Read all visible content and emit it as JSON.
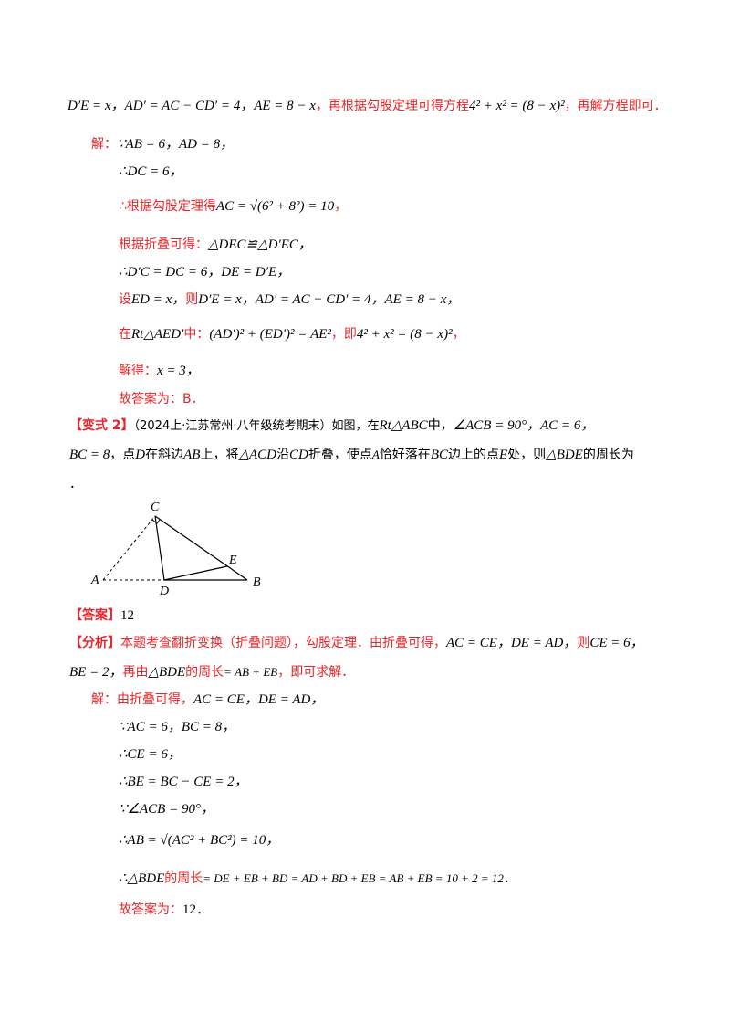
{
  "lines": {
    "l1_math": "D′E = x，AD′ = AC − CD′ = 4，AE = 8 − x",
    "l1_red": "，再根据勾股定理可得方程",
    "l1_eq": "4² + x² = (8 − x)²",
    "l1_end": "，再解方程即可．",
    "s_label": "解：",
    "s1": "∵AB = 6，AD = 8，",
    "s2": "∴DC = 6，",
    "s3_red": "∴根据勾股定理得",
    "s3_math": "AC = √(6² + 8²) = 10",
    "s3_end": "，",
    "s4_red": "根据折叠可得：",
    "s4_math": "△DEC≌△D′EC，",
    "s5": "∴D′C = DC = 6，DE = D′E，",
    "s6_red": "设",
    "s6_math": "ED = x，",
    "s6_red2": "则",
    "s6_math2": "D′E = x，AD′ = AC − CD′ = 4，AE = 8 − x，",
    "s7_red": "在",
    "s7_math": "Rt△AED′",
    "s7_red2": "中：",
    "s7_eq": "(AD′)² + (ED′)² = AE²",
    "s7_red3": "，即",
    "s7_eq2": "4² + x² = (8 − x)²",
    "s7_end": "，",
    "s8_red": "解得：",
    "s8_math": "x = 3，",
    "s9_red": "故答案为：",
    "s9_ans": "B．"
  },
  "variant": {
    "label": "【变式 2】",
    "source": "（2024上·江苏常州·八年级统考期末）如图，在",
    "t1": "Rt△ABC",
    "t2": "中，",
    "t3": "∠ACB = 90°，",
    "t4": "AC = 6，",
    "line2_a": "BC = 8",
    "line2_b": "，点",
    "line2_c": "D",
    "line2_d": "在斜边",
    "line2_e": "AB",
    "line2_f": "上，将",
    "line2_g": "△ACD",
    "line2_h": "沿",
    "line2_i": "CD",
    "line2_j": "折叠，使点",
    "line2_k": "A",
    "line2_l": "恰好落在",
    "line2_m": "BC",
    "line2_n": "边上的点",
    "line2_o": "E",
    "line2_p": "处，则",
    "line2_q": "△BDE",
    "line2_r": "的周长为",
    "line3": "．"
  },
  "figure": {
    "labels": {
      "C": "C",
      "A": "A",
      "D": "D",
      "B": "B",
      "E": "E"
    }
  },
  "answer": {
    "label": "【答案】",
    "value": "12"
  },
  "analysis": {
    "label": "【分析】",
    "t1": "本题考查翻折变换（折叠问题），勾股定理．由折叠可得，",
    "m1": "AC = CE，",
    "m2": "DE = AD，",
    "t2": "则",
    "m3": "CE = 6，",
    "m4": "BE = 2，",
    "t3": "再由",
    "m5": "△BDE",
    "t4": "的周长",
    "m6": "= AB + EB",
    "t5": "，即可求解．"
  },
  "solution2": {
    "label": "解：",
    "t1": "由折叠可得，",
    "m1": "AC = CE，",
    "m2": "DE = AD，",
    "r1": "∵AC = 6，BC = 8，",
    "r2": "∴CE = 6，",
    "r3": "∴BE = BC − CE = 2，",
    "r4": "∵∠ACB = 90°，",
    "r5": "∴AB = √(AC² + BC²) = 10，",
    "r6a": "∴△BDE",
    "r6b": "的周长",
    "r6c": "= DE + EB + BD = AD + BD + EB = AB + EB = 10 + 2 = 12．",
    "r7a": "故答案为：",
    "r7b": "12．"
  }
}
